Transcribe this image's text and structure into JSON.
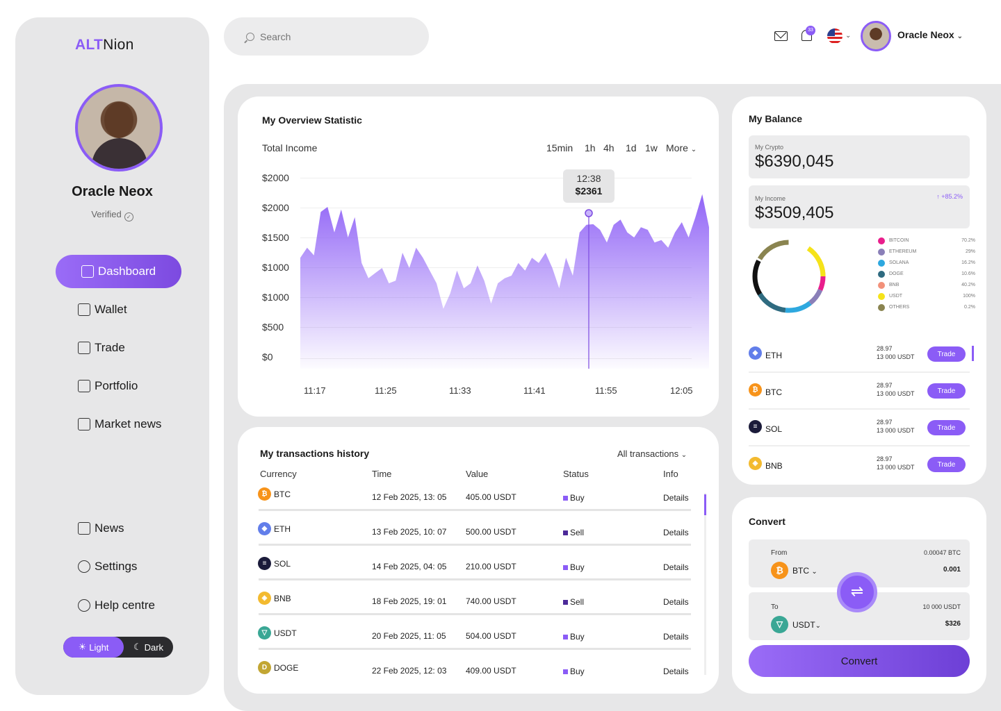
{
  "brand": {
    "part1": "ALT",
    "part2": "Nion"
  },
  "user": {
    "name": "Oracle Neox",
    "status": "Verified"
  },
  "nav": {
    "dashboard": "Dashboard",
    "wallet": "Wallet",
    "trade": "Trade",
    "portfolio": "Portfolio",
    "market_news": "Market news",
    "news": "News",
    "settings": "Settings",
    "help": "Help centre"
  },
  "theme": {
    "light": "Light",
    "dark": "Dark"
  },
  "search": {
    "placeholder": "Search"
  },
  "topbar": {
    "notifications": "33",
    "user_name": "Oracle Neox"
  },
  "overview": {
    "title": "My Overview Statistic",
    "subtitle": "Total Income",
    "timeframes": [
      "15min",
      "1h",
      "4h",
      "1d",
      "1w",
      "More"
    ],
    "tooltip": {
      "time": "12:38",
      "value": "$2361"
    }
  },
  "chart_data": {
    "type": "area",
    "title": "My Overview Statistic",
    "ylabel": "Total Income",
    "y_tick_labels": [
      "$2000",
      "$2000",
      "$1500",
      "$1000",
      "$1000",
      "$500",
      "$0"
    ],
    "x_tick_labels": [
      "11:17",
      "11:25",
      "11:33",
      "11:41",
      "11:55",
      "12:05"
    ],
    "ylim": [
      0,
      3000
    ],
    "color": "#8b5cf6",
    "values": [
      1700,
      1900,
      1750,
      2600,
      2700,
      2200,
      2650,
      2100,
      2500,
      1600,
      1300,
      1400,
      1500,
      1200,
      1250,
      1800,
      1500,
      1900,
      1700,
      1450,
      1200,
      700,
      1000,
      1450,
      1100,
      1200,
      1550,
      1250,
      800,
      1200,
      1300,
      1350,
      1600,
      1450,
      1700,
      1600,
      1800,
      1500,
      1100,
      1700,
      1350,
      2200,
      2350,
      2361,
      2250,
      2000,
      2350,
      2450,
      2200,
      2100,
      2300,
      2250,
      2000,
      2050,
      1900,
      2200,
      2400,
      2100,
      2500,
      2950,
      2300
    ]
  },
  "transactions": {
    "title": "My transactions history",
    "filter": "All transactions",
    "headers": [
      "Currency",
      "Time",
      "Value",
      "Status",
      "Info"
    ],
    "rows": [
      {
        "currency": "BTC",
        "time": "12 Feb 2025, 13: 05",
        "value": "405.00 USDT",
        "status": "Buy",
        "info": "Details"
      },
      {
        "currency": "ETH",
        "time": "13 Feb 2025, 10: 07",
        "value": "500.00 USDT",
        "status": "Sell",
        "info": "Details"
      },
      {
        "currency": "SOL",
        "time": "14 Feb 2025, 04: 05",
        "value": "210.00 USDT",
        "status": "Buy",
        "info": "Details"
      },
      {
        "currency": "BNB",
        "time": "18 Feb 2025, 19: 01",
        "value": "740.00 USDT",
        "status": "Sell",
        "info": "Details"
      },
      {
        "currency": "USDT",
        "time": "20 Feb 2025, 11: 05",
        "value": "504.00 USDT",
        "status": "Buy",
        "info": "Details"
      },
      {
        "currency": "DOGE",
        "time": "22 Feb 2025, 12: 03",
        "value": "409.00 USDT",
        "status": "Buy",
        "info": "Details"
      }
    ]
  },
  "balance": {
    "title": "My Balance",
    "crypto_label": "My Crypto",
    "crypto_value": "$6390,045",
    "income_label": "My Income",
    "income_value": "$3509,405",
    "income_change": "+85.2%",
    "legend": [
      {
        "name": "BITCOIN",
        "pct": "70.2%",
        "color": "#e91e8c"
      },
      {
        "name": "ETHEREUM",
        "pct": "29%",
        "color": "#8a7fb8"
      },
      {
        "name": "SOLANA",
        "pct": "16.2%",
        "color": "#2ea8df"
      },
      {
        "name": "DOGE",
        "pct": "10.6%",
        "color": "#2f6b80"
      },
      {
        "name": "BNB",
        "pct": "40.2%",
        "color": "#f2917a"
      },
      {
        "name": "USDT",
        "pct": "100%",
        "color": "#f5e31a"
      },
      {
        "name": "OTHERS",
        "pct": "0.2%",
        "color": "#8a8450"
      }
    ],
    "assets": [
      {
        "symbol": "ETH",
        "qty": "28.97",
        "usdt": "13 000 USDT",
        "action": "Trade"
      },
      {
        "symbol": "BTC",
        "qty": "28.97",
        "usdt": "13 000 USDT",
        "action": "Trade"
      },
      {
        "symbol": "SOL",
        "qty": "28.97",
        "usdt": "13 000 USDT",
        "action": "Trade"
      },
      {
        "symbol": "BNB",
        "qty": "28.97",
        "usdt": "13 000 USDT",
        "action": "Trade"
      }
    ]
  },
  "convert": {
    "title": "Convert",
    "from_label": "From",
    "from_currency": "BTC",
    "from_rate": "0.00047 BTC",
    "from_amount": "0.001",
    "to_label": "To",
    "to_currency": "USDT",
    "to_rate": "10 000 USDT",
    "to_amount": "$326",
    "button": "Convert"
  }
}
